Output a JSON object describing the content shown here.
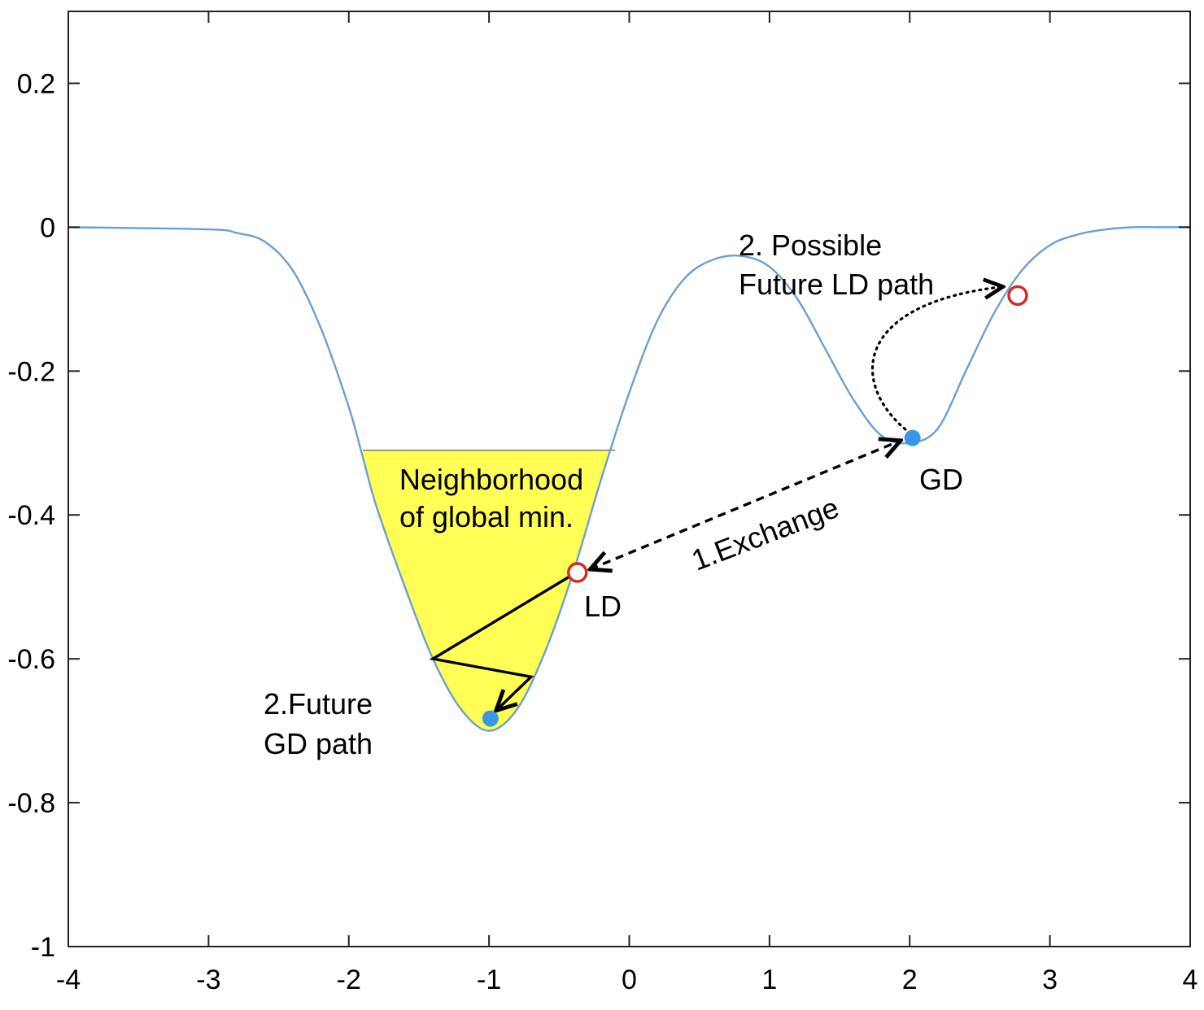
{
  "chart_data": {
    "type": "line",
    "title": "",
    "xlabel": "",
    "ylabel": "",
    "xlim": [
      -4,
      4
    ],
    "ylim": [
      -1,
      0.3
    ],
    "x_ticks": [
      -4,
      -3,
      -2,
      -1,
      0,
      1,
      2,
      3,
      4
    ],
    "x_tick_labels": [
      "-4",
      "-3",
      "-2",
      "-1",
      "0",
      "1",
      "2",
      "3",
      "4"
    ],
    "y_ticks": [
      -1,
      -0.8,
      -0.6,
      -0.4,
      -0.2,
      0,
      0.2
    ],
    "y_tick_labels": [
      "-1",
      "-0.8",
      "-0.6",
      "-0.4",
      "-0.2",
      "0",
      "0.2"
    ],
    "grid": false,
    "box": true,
    "series": [
      {
        "curve_color": "#6a9fd4",
        "x": [
          -4.0,
          -3.0,
          -2.8,
          -2.6,
          -2.4,
          -2.2,
          -2.0,
          -1.9,
          -1.8,
          -1.6,
          -1.4,
          -1.2,
          -1.0,
          -0.8,
          -0.6,
          -0.4,
          -0.2,
          0.0,
          0.2,
          0.4,
          0.6,
          0.8,
          1.0,
          1.2,
          1.4,
          1.6,
          1.8,
          2.0,
          2.2,
          2.4,
          2.6,
          2.8,
          3.0,
          3.2,
          3.4,
          3.6,
          3.8,
          4.0
        ],
        "y": [
          0.0,
          -0.003,
          -0.008,
          -0.02,
          -0.06,
          -0.14,
          -0.25,
          -0.32,
          -0.39,
          -0.5,
          -0.6,
          -0.67,
          -0.7,
          -0.67,
          -0.59,
          -0.48,
          -0.35,
          -0.23,
          -0.13,
          -0.07,
          -0.045,
          -0.04,
          -0.055,
          -0.1,
          -0.17,
          -0.24,
          -0.29,
          -0.3,
          -0.28,
          -0.2,
          -0.12,
          -0.06,
          -0.025,
          -0.01,
          -0.003,
          0.0,
          0.0,
          0.0
        ]
      }
    ],
    "shaded_region": {
      "label": "Neighborhood of global min.",
      "label_lines": [
        "Neighborhood",
        "of global min."
      ],
      "color": "#ffff55",
      "x_range": [
        -1.9,
        -0.1
      ],
      "y_top": -0.31
    },
    "markers": [
      {
        "label": "LD",
        "style": "open-circle",
        "color": "#d42a1f",
        "x": -0.37,
        "y": -0.48
      },
      {
        "label": "",
        "style": "open-circle",
        "color": "#d42a1f",
        "x": 2.77,
        "y": -0.095
      },
      {
        "label": "GD",
        "style": "filled-circle",
        "color": "#3a96e8",
        "x": 2.02,
        "y": -0.293
      },
      {
        "label": "",
        "style": "filled-circle",
        "color": "#3a96e8",
        "x": -0.99,
        "y": -0.683
      }
    ],
    "annotations": [
      {
        "text": "1.Exchange",
        "style": "dashed-double-arrow",
        "from": [
          -0.36,
          -0.48
        ],
        "to": [
          1.97,
          -0.292
        ]
      },
      {
        "text": "2. Possible\nFuture LD path",
        "style": "dotted-arrow",
        "from": [
          1.98,
          -0.29
        ],
        "to": [
          2.7,
          -0.085
        ]
      },
      {
        "text": "2.Future\nGD path",
        "style": "solid-zigzag-arrow",
        "points": [
          [
            -0.37,
            -0.48
          ],
          [
            -1.4,
            -0.6
          ],
          [
            -0.7,
            -0.625
          ],
          [
            -0.95,
            -0.672
          ]
        ]
      }
    ],
    "text_labels": {
      "ld": "LD",
      "gd": "GD",
      "exchange": "1.Exchange",
      "possible_ld_line1": "2. Possible",
      "possible_ld_line2": "Future LD path",
      "future_gd_line1": "2.Future",
      "future_gd_line2": "GD path",
      "neighborhood_line1": "Neighborhood",
      "neighborhood_line2": "of global min."
    }
  }
}
